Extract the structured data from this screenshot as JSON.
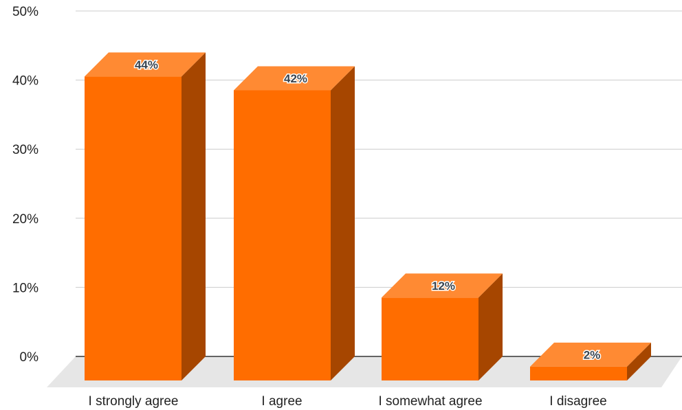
{
  "chart_data": {
    "type": "bar",
    "style": "3d",
    "categories": [
      "I strongly agree",
      "I agree",
      "I somewhat agree",
      "I disagree"
    ],
    "values": [
      44,
      42,
      12,
      2
    ],
    "data_labels": [
      "44%",
      "42%",
      "12%",
      "2%"
    ],
    "ylim": [
      0,
      50
    ],
    "y_ticks": [
      0,
      10,
      20,
      30,
      40,
      50
    ],
    "y_tick_labels": [
      "0%",
      "10%",
      "20%",
      "30%",
      "40%",
      "50%"
    ],
    "grid": true,
    "legend": "none",
    "colors": {
      "bar_front": "#ff6d00",
      "bar_top": "#ff8a33",
      "bar_side": "#a64600",
      "floor": "#e6e6e6",
      "grid": "#cccccc",
      "axis": "#333333"
    }
  }
}
